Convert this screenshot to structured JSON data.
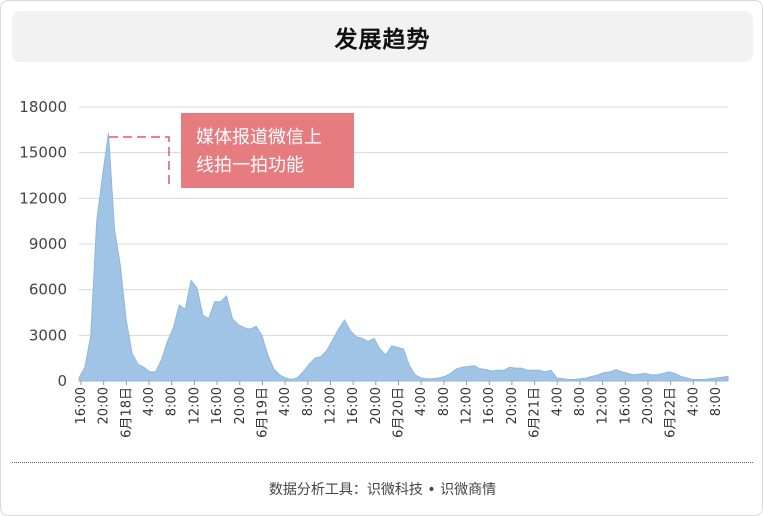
{
  "header": {
    "title": "发展趋势"
  },
  "footer": {
    "text": "数据分析工具：识微科技 • 识微商情"
  },
  "colors": {
    "area": "#a0c4e6",
    "area_stroke": "#8fb6dc",
    "annotation_box": "#e67c80",
    "annotation_line": "#e05a60",
    "grid": "#d8d8d8"
  },
  "chart_data": {
    "type": "area",
    "ylim": [
      0,
      18000
    ],
    "yticks": [
      "0",
      "3000",
      "6000",
      "9000",
      "12000",
      "15000",
      "18000"
    ],
    "xticks": [
      "16:00",
      "20:00",
      "6月18日",
      "4:00",
      "8:00",
      "12:00",
      "16:00",
      "20:00",
      "6月19日",
      "4:00",
      "8:00",
      "12:00",
      "16:00",
      "20:00",
      "6月20日",
      "4:00",
      "8:00",
      "12:00",
      "16:00",
      "20:00",
      "6月21日",
      "4:00",
      "8:00",
      "12:00",
      "16:00",
      "20:00",
      "6月22日",
      "4:00",
      "8:00"
    ],
    "series": [
      {
        "values": [
          200,
          900,
          3000,
          10500,
          13500,
          16300,
          10000,
          7600,
          4000,
          1800,
          1100,
          900,
          600,
          600,
          1400,
          2600,
          3500,
          5000,
          4700,
          6600,
          6100,
          4300,
          4100,
          5200,
          5200,
          5600,
          4100,
          3700,
          3500,
          3400,
          3600,
          3000,
          1700,
          800,
          400,
          200,
          100,
          200,
          600,
          1100,
          1500,
          1600,
          2000,
          2700,
          3400,
          4000,
          3300,
          2900,
          2800,
          2600,
          2800,
          2100,
          1700,
          2300,
          2200,
          2100,
          1000,
          400,
          200,
          150,
          150,
          200,
          300,
          500,
          800,
          900,
          950,
          1000,
          800,
          750,
          650,
          700,
          700,
          900,
          850,
          850,
          700,
          700,
          700,
          600,
          700,
          200,
          150,
          100,
          100,
          150,
          200,
          300,
          400,
          550,
          600,
          750,
          600,
          500,
          400,
          450,
          500,
          400,
          400,
          500,
          600,
          500,
          300,
          200,
          100,
          100,
          100,
          150,
          200,
          250,
          300
        ]
      }
    ],
    "annotation": {
      "text_line1": "媒体报道微信上",
      "text_line2": "线拍一拍功能"
    }
  }
}
